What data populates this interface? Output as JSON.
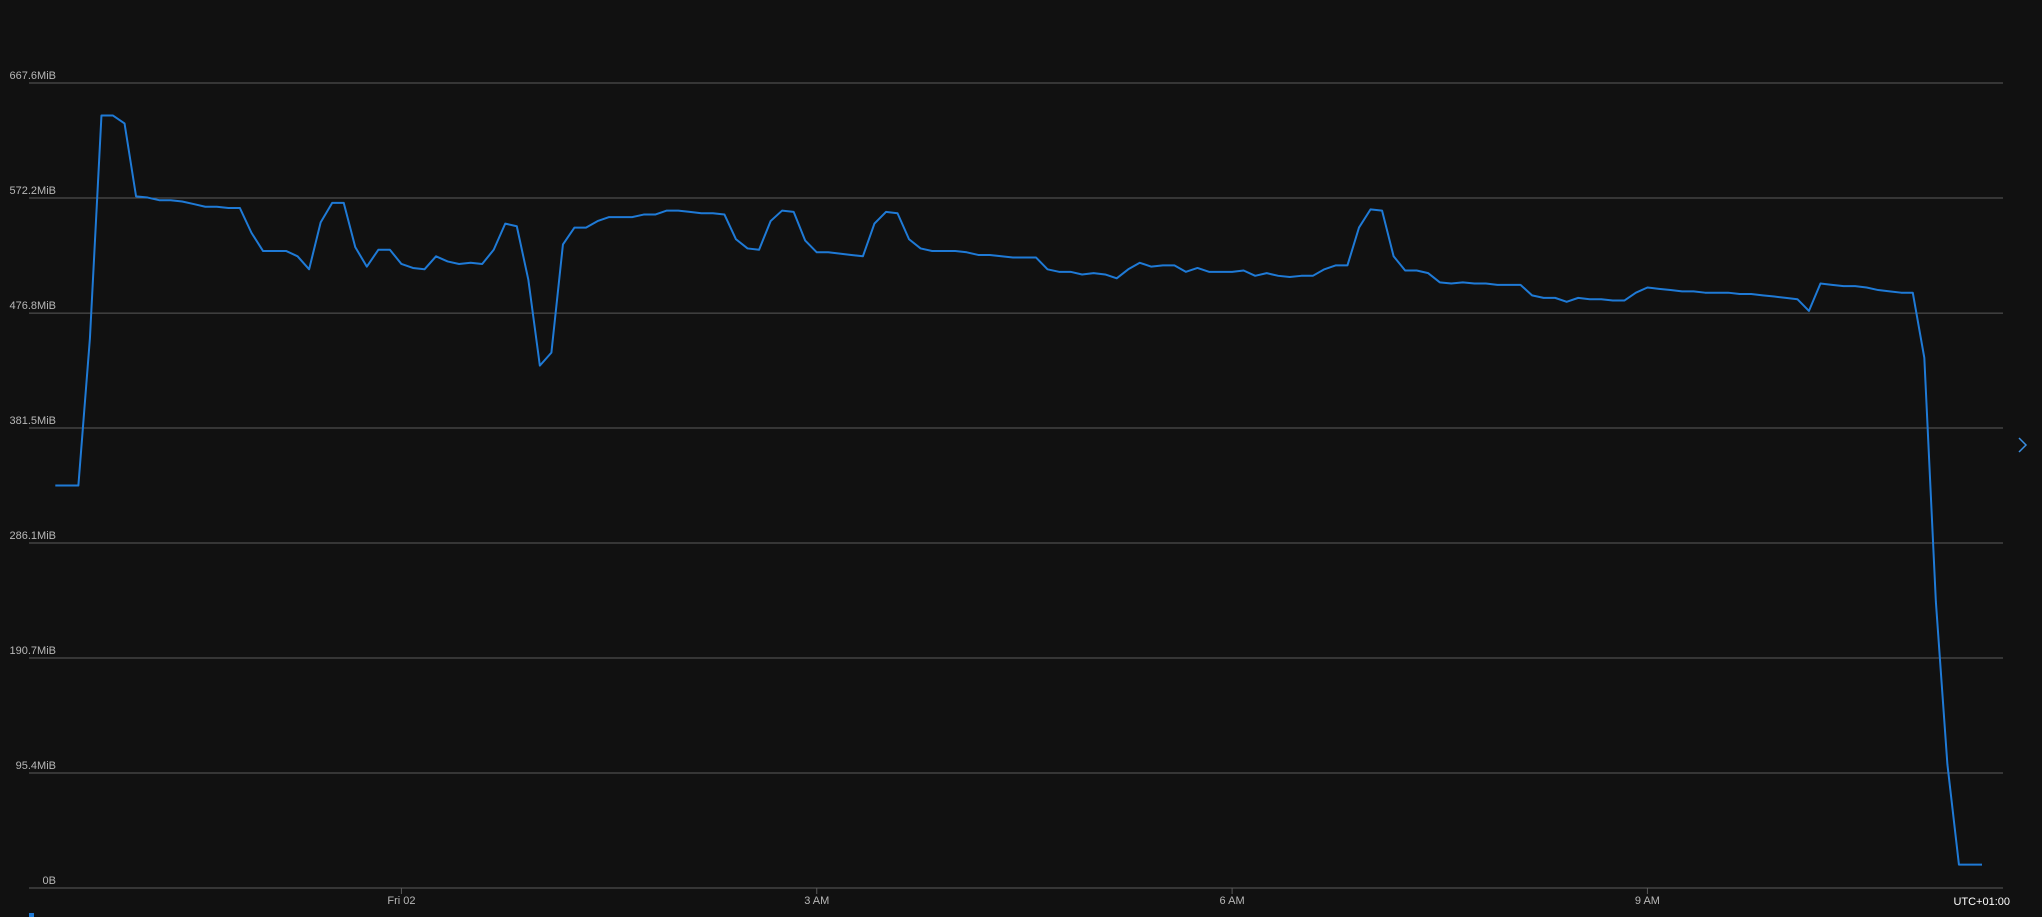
{
  "chart_data": {
    "type": "line",
    "color": "#1f7ad6",
    "grid": true,
    "timezone_label": "UTC+01:00",
    "xlim": [
      -161.4,
      694.1
    ],
    "xticks": [
      {
        "value": 0,
        "label": "Fri 02"
      },
      {
        "value": 180,
        "label": "3 AM"
      },
      {
        "value": 360,
        "label": "6 AM"
      },
      {
        "value": 540,
        "label": "9 AM"
      }
    ],
    "ylim": [
      0,
      667.6
    ],
    "yticks": [
      {
        "value": 0,
        "label": "0B"
      },
      {
        "value": 95.4,
        "label": "95.4MiB"
      },
      {
        "value": 190.7,
        "label": "190.7MiB"
      },
      {
        "value": 286.1,
        "label": "286.1MiB"
      },
      {
        "value": 381.5,
        "label": "381.5MiB"
      },
      {
        "value": 476.8,
        "label": "476.8MiB"
      },
      {
        "value": 572.2,
        "label": "572.2MiB"
      },
      {
        "value": 667.6,
        "label": "667.6MiB"
      }
    ],
    "x": [
      -150,
      -145,
      -140,
      -135,
      -130,
      -125,
      -120,
      -115,
      -110,
      -105,
      -100,
      -95,
      -90,
      -85,
      -80,
      -75,
      -70,
      -65,
      -60,
      -55,
      -50,
      -45,
      -40,
      -35,
      -30,
      -25,
      -20,
      -15,
      -10,
      -5,
      0,
      5,
      10,
      15,
      20,
      25,
      30,
      35,
      40,
      45,
      50,
      55,
      60,
      65,
      70,
      75,
      80,
      85,
      90,
      95,
      100,
      105,
      110,
      115,
      120,
      125,
      130,
      135,
      140,
      145,
      150,
      155,
      160,
      165,
      170,
      175,
      180,
      185,
      190,
      195,
      200,
      205,
      210,
      215,
      220,
      225,
      230,
      235,
      240,
      245,
      250,
      255,
      260,
      265,
      270,
      275,
      280,
      285,
      290,
      295,
      300,
      305,
      310,
      315,
      320,
      325,
      330,
      335,
      340,
      345,
      350,
      355,
      360,
      365,
      370,
      375,
      380,
      385,
      390,
      395,
      400,
      405,
      410,
      415,
      420,
      425,
      430,
      435,
      440,
      445,
      450,
      455,
      460,
      465,
      470,
      475,
      480,
      485,
      490,
      495,
      500,
      505,
      510,
      515,
      520,
      525,
      530,
      535,
      540,
      545,
      550,
      555,
      560,
      565,
      570,
      575,
      580,
      585,
      590,
      595,
      600,
      605,
      610,
      615,
      620,
      625,
      630,
      635,
      640,
      645,
      650,
      655,
      660,
      665,
      670,
      675,
      680,
      685
    ],
    "values": [
      333.8,
      333.8,
      333.8,
      455.9,
      640.6,
      640.6,
      634.1,
      573.6,
      572.6,
      570.4,
      570.4,
      569.3,
      567.2,
      565.0,
      565.0,
      563.9,
      563.9,
      543.4,
      528.3,
      528.3,
      528.3,
      523.9,
      513.1,
      552.0,
      568.2,
      568.2,
      531.5,
      515.3,
      529.3,
      529.3,
      517.5,
      514.2,
      513.1,
      523.9,
      519.6,
      517.5,
      518.5,
      517.5,
      529.3,
      551.0,
      548.8,
      504.5,
      433.2,
      444.0,
      533.7,
      547.7,
      547.7,
      553.1,
      556.4,
      556.4,
      556.4,
      558.5,
      558.5,
      561.8,
      561.8,
      560.7,
      559.6,
      559.6,
      558.5,
      538.0,
      530.4,
      529.3,
      553.1,
      561.8,
      560.7,
      536.9,
      527.2,
      527.2,
      526.1,
      525.0,
      523.9,
      551.0,
      560.7,
      559.6,
      538.0,
      530.4,
      528.3,
      528.3,
      528.3,
      527.2,
      525.0,
      525.0,
      523.9,
      522.9,
      522.9,
      522.9,
      513.1,
      511.0,
      511.0,
      508.8,
      509.9,
      508.8,
      505.6,
      513.1,
      518.5,
      515.3,
      516.4,
      516.4,
      511.0,
      514.2,
      511.0,
      511.0,
      511.0,
      512.1,
      507.7,
      509.9,
      507.7,
      506.7,
      507.7,
      507.7,
      513.1,
      516.4,
      516.4,
      547.7,
      562.8,
      561.8,
      523.9,
      512.1,
      512.1,
      509.9,
      502.3,
      501.3,
      502.3,
      501.3,
      501.3,
      500.2,
      500.2,
      500.2,
      491.5,
      489.4,
      489.4,
      486.1,
      489.4,
      488.3,
      488.3,
      487.2,
      487.2,
      493.7,
      498.0,
      496.9,
      495.9,
      494.8,
      494.8,
      493.7,
      493.7,
      493.7,
      492.6,
      492.6,
      491.5,
      490.5,
      489.4,
      488.3,
      478.6,
      501.3,
      500.2,
      499.1,
      499.1,
      498.0,
      495.9,
      494.8,
      493.7,
      493.7,
      439.7,
      237.7,
      102.6,
      19.4,
      19.4,
      19.4
    ]
  }
}
